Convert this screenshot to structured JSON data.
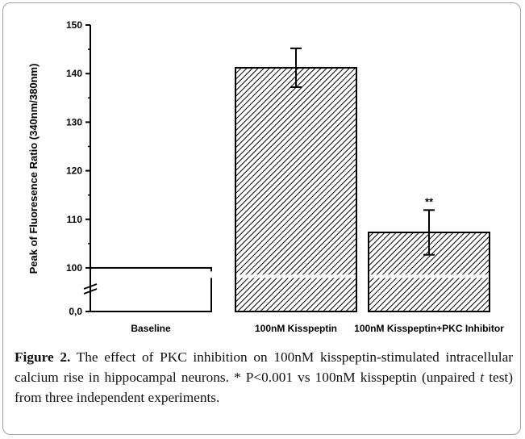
{
  "chart_data": {
    "type": "bar",
    "ylabel": "Peak of Fluoresence Ratio (340nm/380nm)",
    "categories": [
      "Baseline",
      "100nM Kisspeptin",
      "100nM Kisspeptin+PKC Inhibitor"
    ],
    "values": [
      100,
      141.2,
      107.3
    ],
    "errors": [
      0,
      4.0,
      4.6
    ],
    "significance": [
      "",
      "",
      "**"
    ],
    "y_axis_break": [
      0,
      97
    ],
    "ylim_upper": [
      97,
      150
    ],
    "yticks_upper": [
      100,
      110,
      120,
      130,
      140,
      150
    ],
    "ytick_labels": [
      "0,0",
      "100",
      "110",
      "120",
      "130",
      "140",
      "150"
    ],
    "bar_fill": [
      "none",
      "diagonal-hatch",
      "diagonal-hatch"
    ],
    "grid": false,
    "colors": {
      "axis": "#000000",
      "bar_edge": "#000000",
      "hatch": "#000000",
      "frame": "#9aa3a8"
    }
  },
  "caption": {
    "label": "Figure 2.",
    "text_before_italic": " The effect of PKC inhibition on 100nM kisspeptin-stimulated intracellular calcium rise in hippocampal neurons. * P<0.001 vs 100nM kisspeptin (unpaired ",
    "italic": "t",
    "text_after_italic": " test) from three independent experiments."
  }
}
